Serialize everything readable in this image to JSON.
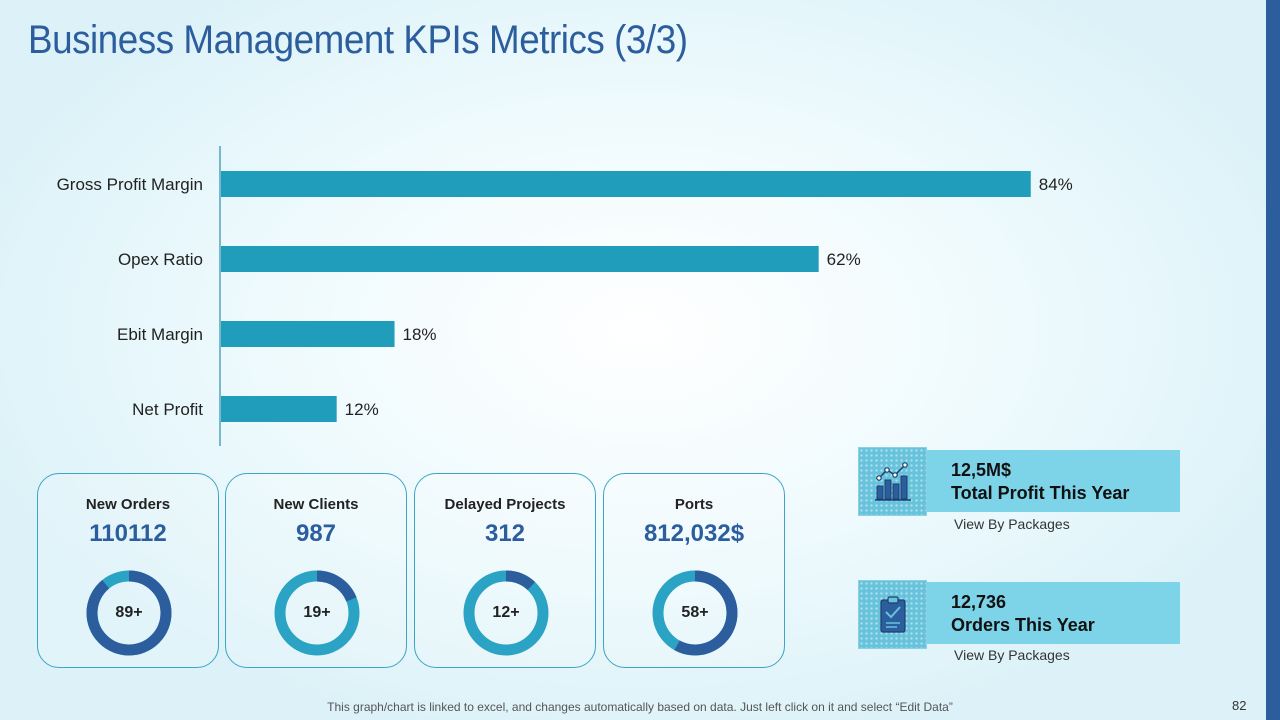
{
  "title": "Business Management KPIs Metrics (3/3)",
  "chart_data": {
    "type": "bar",
    "orientation": "horizontal",
    "categories": [
      "Gross Profit Margin",
      "Opex Ratio",
      "Ebit Margin",
      "Net Profit"
    ],
    "values": [
      84,
      62,
      18,
      12
    ],
    "value_labels": [
      "84%",
      "62%",
      "18%",
      "12%"
    ],
    "unit": "%",
    "xlim": [
      0,
      100
    ],
    "grid": false,
    "bar_color": "#1f9dbb",
    "axis_color": "#2a8fae"
  },
  "kpis": [
    {
      "label": "New Orders",
      "value": "110112",
      "donut_label": "89+",
      "percent": 89
    },
    {
      "label": "New Clients",
      "value": "987",
      "donut_label": "19+",
      "percent": 19
    },
    {
      "label": "Delayed Projects",
      "value": "312",
      "donut_label": "12+",
      "percent": 12
    },
    {
      "label": "Ports",
      "value": "812,032$",
      "donut_label": "58+",
      "percent": 58
    }
  ],
  "donut_colors": {
    "highlight": "#2c5e9e",
    "rest": "#2aa3c4"
  },
  "summaries": [
    {
      "value": "12,5M$",
      "caption": "Total Profit This Year",
      "link": "View By Packages",
      "icon": "bar-chart-trend-icon"
    },
    {
      "value": "12,736",
      "caption": "Orders This Year",
      "link": "View By Packages",
      "icon": "clipboard-check-icon"
    }
  ],
  "footer_note": "This graph/chart is linked to excel, and changes automatically based on data. Just left click on it and select “Edit Data”",
  "page_number": "82",
  "colors": {
    "title": "#2c5e9e",
    "accent_bar": "#2c5e9e",
    "banner": "#7dd3e8"
  }
}
